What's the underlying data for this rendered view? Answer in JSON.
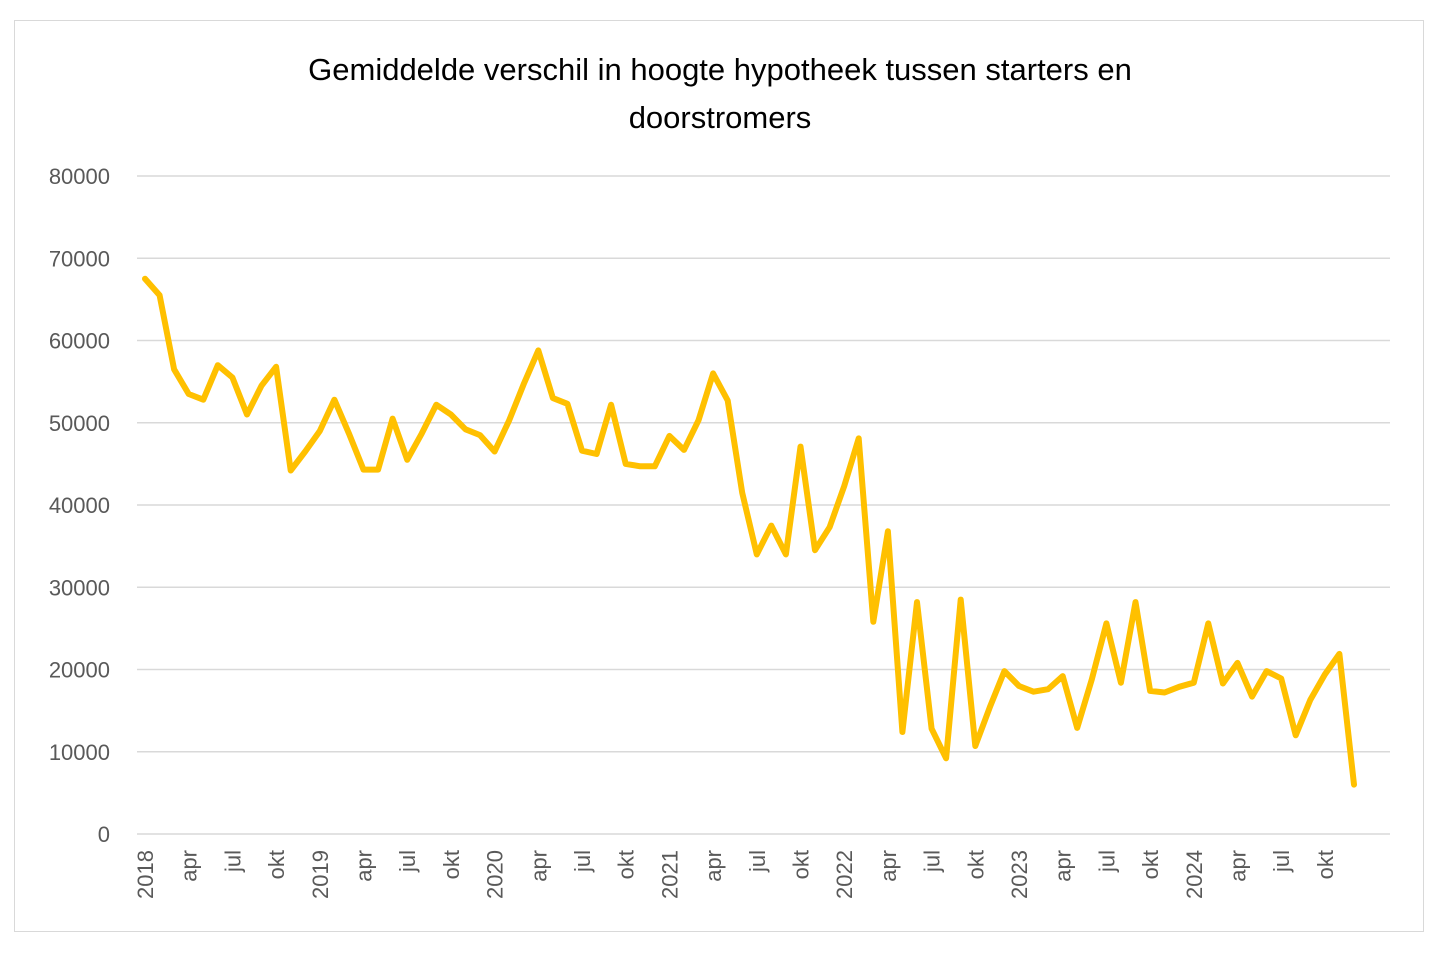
{
  "chart_data": {
    "type": "line",
    "title": "Gemiddelde verschil in hoogte hypotheek tussen starters en doorstromers",
    "xlabel": "",
    "ylabel": "",
    "ylim": [
      0,
      80000
    ],
    "yticks": [
      0,
      10000,
      20000,
      30000,
      40000,
      50000,
      60000,
      70000,
      80000
    ],
    "grid": true,
    "legend": "none",
    "colors": {
      "line": "#FFC000",
      "grid": "#d9d9d9",
      "tick_text": "#595959",
      "frame": "#d9d9d9"
    },
    "x": [
      "2018",
      "",
      "",
      "apr",
      "",
      "",
      "jul",
      "",
      "",
      "okt",
      "",
      "",
      "2019",
      "",
      "",
      "apr",
      "",
      "",
      "jul",
      "",
      "",
      "okt",
      "",
      "",
      "2020",
      "",
      "",
      "apr",
      "",
      "",
      "jul",
      "",
      "",
      "okt",
      "",
      "",
      "2021",
      "",
      "",
      "apr",
      "",
      "",
      "jul",
      "",
      "",
      "okt",
      "",
      "",
      "2022",
      "",
      "",
      "apr",
      "",
      "",
      "jul",
      "",
      "",
      "okt",
      "",
      "",
      "2023",
      "",
      "",
      "apr",
      "",
      "",
      "jul",
      "",
      "",
      "okt",
      "",
      "",
      "2024",
      "",
      "",
      "apr",
      "",
      "",
      "jul",
      "",
      "",
      "okt",
      "",
      ""
    ],
    "series": [
      {
        "values": [
          67500,
          65500,
          56500,
          53500,
          52800,
          57000,
          55500,
          51000,
          54500,
          56800,
          44200,
          46500,
          49000,
          52800,
          48700,
          44300,
          44300,
          50500,
          45500,
          48700,
          52200,
          51000,
          49200,
          48500,
          46500,
          50300,
          54700,
          58800,
          53000,
          52300,
          46600,
          46200,
          52200,
          45000,
          44700,
          44700,
          48400,
          46700,
          50300,
          56000,
          52700,
          41500,
          34000,
          37500,
          34000,
          47100,
          34500,
          37300,
          42300,
          48100,
          25800,
          36800,
          12400,
          28200,
          12800,
          9200,
          28500,
          10700,
          15400,
          19800,
          18000,
          17300,
          17600,
          19200,
          12900,
          18800,
          25600,
          18400,
          28200,
          17400,
          17200,
          17900,
          18400,
          25600,
          18300,
          20800,
          16700,
          19800,
          18900,
          12000,
          16300,
          19400,
          21900,
          6000
        ]
      }
    ]
  }
}
